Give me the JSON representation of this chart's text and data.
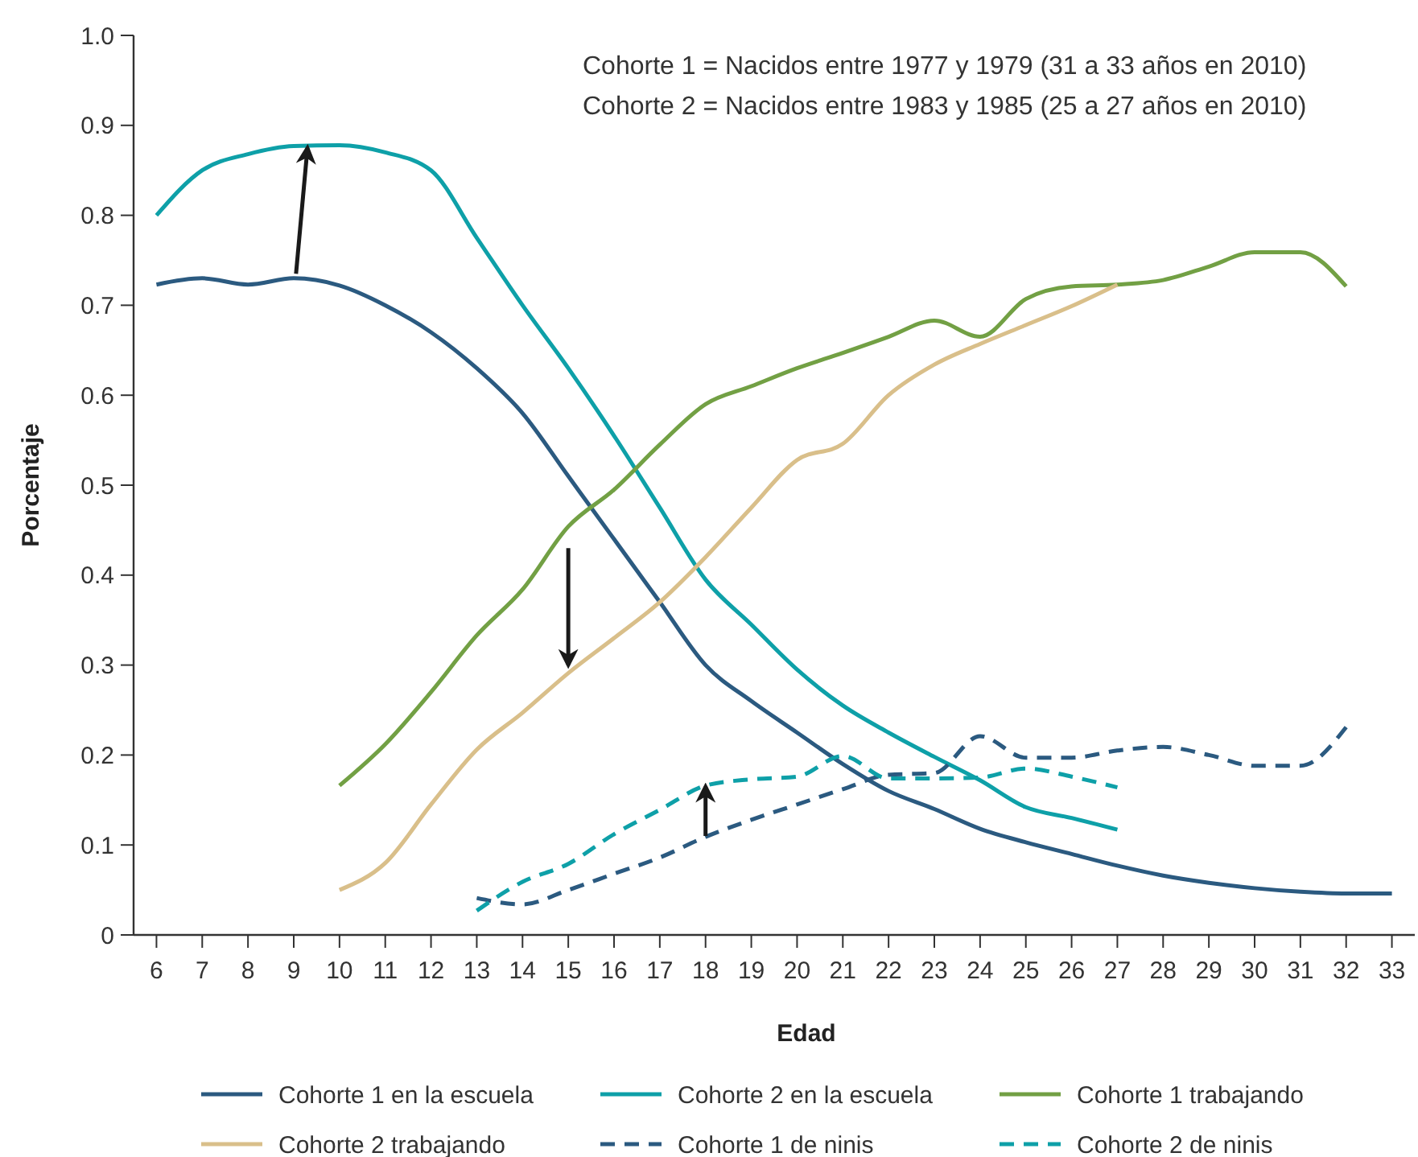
{
  "chart_data": {
    "type": "line",
    "xlabel": "Edad",
    "ylabel": "Porcentaje",
    "annotations": [
      "Cohorte 1 = Nacidos entre 1977 y 1979 (31 a 33 años en 2010)",
      "Cohorte 2 = Nacidos entre 1983 y 1985 (25 a 27 años en 2010)"
    ],
    "xlim": [
      5.5,
      33.5
    ],
    "xticks": [
      6,
      7,
      8,
      9,
      10,
      11,
      12,
      13,
      14,
      15,
      16,
      17,
      18,
      19,
      20,
      21,
      22,
      23,
      24,
      25,
      26,
      27,
      28,
      29,
      30,
      31,
      32,
      33
    ],
    "ylim": [
      0,
      1
    ],
    "yticks": [
      {
        "value": 0,
        "label": "0"
      },
      {
        "value": 0.1,
        "label": "0.1"
      },
      {
        "value": 0.2,
        "label": "0.2"
      },
      {
        "value": 0.3,
        "label": "0.3"
      },
      {
        "value": 0.4,
        "label": "0.4"
      },
      {
        "value": 0.5,
        "label": "0.5"
      },
      {
        "value": 0.6,
        "label": "0.6"
      },
      {
        "value": 0.7,
        "label": "0.7"
      },
      {
        "value": 0.8,
        "label": "0.8"
      },
      {
        "value": 0.9,
        "label": "0.9"
      },
      {
        "value": 1,
        "label": "1.0"
      }
    ],
    "grid": false,
    "legend": "bottom",
    "marker": "none",
    "series": [
      {
        "name": "Cohorte 1 en la escuela",
        "color": "#2b5a80",
        "line_style": "solid",
        "x": [
          6,
          7,
          8,
          9,
          10,
          11,
          12,
          13,
          14,
          15,
          16,
          17,
          18,
          19,
          20,
          21,
          22,
          23,
          24,
          25,
          26,
          27,
          28,
          29,
          30,
          31,
          32,
          33
        ],
        "values": [
          0.723,
          0.73,
          0.723,
          0.73,
          0.722,
          0.7,
          0.67,
          0.63,
          0.58,
          0.51,
          0.44,
          0.37,
          0.3,
          0.26,
          0.225,
          0.19,
          0.16,
          0.14,
          0.118,
          0.103,
          0.09,
          0.077,
          0.066,
          0.058,
          0.052,
          0.048,
          0.046,
          0.046
        ]
      },
      {
        "name": "Cohorte 2 en la escuela",
        "color": "#0ea0a8",
        "line_style": "solid",
        "x": [
          6,
          7,
          8,
          9,
          10,
          11,
          12,
          13,
          14,
          15,
          16,
          17,
          18,
          19,
          20,
          21,
          22,
          23,
          24,
          25,
          26,
          27
        ],
        "values": [
          0.8,
          0.85,
          0.868,
          0.877,
          0.878,
          0.87,
          0.85,
          0.775,
          0.7,
          0.63,
          0.555,
          0.475,
          0.395,
          0.345,
          0.295,
          0.255,
          0.225,
          0.198,
          0.172,
          0.142,
          0.13,
          0.117
        ]
      },
      {
        "name": "Cohorte 1 trabajando",
        "color": "#72a044",
        "line_style": "solid",
        "x": [
          10,
          11,
          12,
          13,
          14,
          15,
          16,
          17,
          18,
          19,
          20,
          21,
          22,
          23,
          24,
          25,
          26,
          27,
          28,
          29,
          30,
          31,
          32
        ],
        "values": [
          0.166,
          0.212,
          0.27,
          0.333,
          0.384,
          0.454,
          0.495,
          0.545,
          0.59,
          0.61,
          0.63,
          0.647,
          0.665,
          0.683,
          0.665,
          0.707,
          0.721,
          0.723,
          0.728,
          0.743,
          0.759,
          0.759,
          0.721
        ]
      },
      {
        "name": "Cohorte 2 trabajando",
        "color": "#d9bf8a",
        "line_style": "solid",
        "x": [
          10,
          11,
          12,
          13,
          14,
          15,
          16,
          17,
          18,
          19,
          20,
          21,
          22,
          23,
          24,
          25,
          26,
          27
        ],
        "values": [
          0.05,
          0.08,
          0.145,
          0.206,
          0.247,
          0.291,
          0.33,
          0.37,
          0.42,
          0.475,
          0.528,
          0.546,
          0.6,
          0.634,
          0.657,
          0.678,
          0.699,
          0.723
        ]
      },
      {
        "name": "Cohorte 1 de ninis",
        "color": "#2b5a80",
        "line_style": "dashed",
        "x": [
          13,
          14,
          15,
          16,
          17,
          18,
          19,
          20,
          21,
          22,
          23,
          24,
          25,
          26,
          27,
          28,
          29,
          30,
          31,
          32
        ],
        "values": [
          0.041,
          0.034,
          0.05,
          0.068,
          0.086,
          0.109,
          0.128,
          0.145,
          0.162,
          0.178,
          0.18,
          0.221,
          0.197,
          0.197,
          0.205,
          0.209,
          0.2,
          0.188,
          0.188,
          0.231
        ]
      },
      {
        "name": "Cohorte 2 de ninis",
        "color": "#0ea0a8",
        "line_style": "dashed",
        "x": [
          13,
          14,
          15,
          16,
          17,
          18,
          19,
          20,
          21,
          22,
          23,
          24,
          25,
          26,
          27
        ],
        "values": [
          0.027,
          0.059,
          0.079,
          0.112,
          0.139,
          0.166,
          0.173,
          0.176,
          0.199,
          0.174,
          0.174,
          0.175,
          0.185,
          0.176,
          0.164
        ]
      }
    ]
  }
}
